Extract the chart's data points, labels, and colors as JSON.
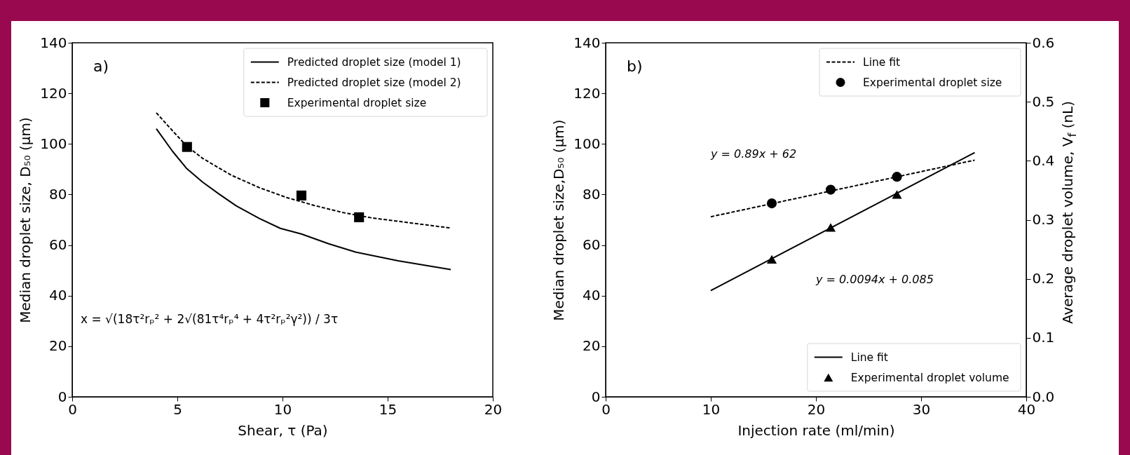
{
  "chart_data": [
    {
      "type": "line",
      "xlabel": "Shear, τ (Pa)",
      "ylabel": "Median droplet size, D₅₀ (μm)",
      "xlim": [
        0,
        20
      ],
      "xticks": [
        0,
        5,
        10,
        15,
        20
      ],
      "ylim": [
        0,
        140
      ],
      "yticks": [
        0,
        20,
        40,
        60,
        80,
        100,
        120,
        140
      ],
      "legend": "top right",
      "series": [
        {
          "name": "Predicted droplet size (model 1)",
          "type": "line",
          "line_style": "solid",
          "color": "#000000",
          "x": [
            4,
            4.77,
            5.43,
            6.2,
            7,
            7.8,
            8.9,
            9.9,
            10.9,
            12.2,
            13.5,
            15.5,
            18
          ],
          "values": [
            106,
            97.1,
            90.4,
            84.9,
            80.1,
            75.5,
            70.5,
            66.6,
            64.4,
            60.5,
            57.2,
            53.8,
            50.3
          ]
        },
        {
          "name": "Predicted droplet size (model 2)",
          "type": "line",
          "line_style": "dashed",
          "color": "#000000",
          "x": [
            4,
            4.77,
            5.43,
            6.2,
            7.55,
            8.9,
            10.2,
            11.5,
            12.85,
            14.2,
            15.5,
            17.95
          ],
          "values": [
            112.3,
            105.2,
            99.3,
            94.3,
            87.7,
            82.7,
            78.8,
            75.7,
            72.9,
            70.8,
            69.4,
            66.8
          ]
        },
        {
          "name": "Experimental droplet size",
          "type": "scatter",
          "marker": "square",
          "color": "#000000",
          "x": [
            5.46,
            10.9,
            13.64
          ],
          "values": [
            98.8,
            79.6,
            71.0
          ]
        }
      ],
      "annotations": [
        "a)",
        "x = √(18τ²rₚ² + 2√(81τ⁴rₚ⁴ + 4τ²rₚ²γ²)) / 3τ"
      ]
    },
    {
      "type": "line",
      "xlabel": "Injection rate (ml/min)",
      "ylabel": "Median droplet size,D₅₀ (μm)",
      "y2label": "Average droplet volume, V$_{f}$ (nL)",
      "xlim": [
        0,
        40
      ],
      "xticks": [
        0,
        10,
        20,
        30,
        40
      ],
      "ylim": [
        0,
        140
      ],
      "yticks": [
        0,
        20,
        40,
        60,
        80,
        100,
        120,
        140
      ],
      "y2lim": [
        0,
        0.6
      ],
      "y2ticks": [
        {
          "value": 0,
          "label": "0.0"
        },
        0.1,
        0.2,
        0.3,
        0.4,
        0.5,
        0.6
      ],
      "legend": "right",
      "series": [
        {
          "name": "Line fit",
          "type": "line",
          "line_style": "dashed",
          "color": "#000000",
          "x": [
            10,
            35.1
          ],
          "values": [
            71.2,
            93.6
          ]
        },
        {
          "name": "Experimental droplet size",
          "type": "scatter",
          "marker": "circle",
          "color": "#000000",
          "x": [
            15.8,
            21.4,
            27.7
          ],
          "values": [
            76.5,
            81.9,
            87.0
          ]
        },
        {
          "name": "Line fit",
          "type": "line",
          "line_style": "solid",
          "color": "#000000",
          "axis": "y2",
          "x": [
            10,
            35.1
          ],
          "values": [
            0.18,
            0.414
          ]
        },
        {
          "name": "Experimental droplet volume",
          "type": "scatter",
          "marker": "triangle",
          "color": "#000000",
          "axis": "y2",
          "x": [
            15.8,
            21.4,
            27.7
          ],
          "values": [
            0.233,
            0.287,
            0.343
          ]
        }
      ],
      "annotations": [
        "b)",
        "y = 0.89x + 62",
        "y = 0.0094x + 0.085"
      ]
    }
  ]
}
